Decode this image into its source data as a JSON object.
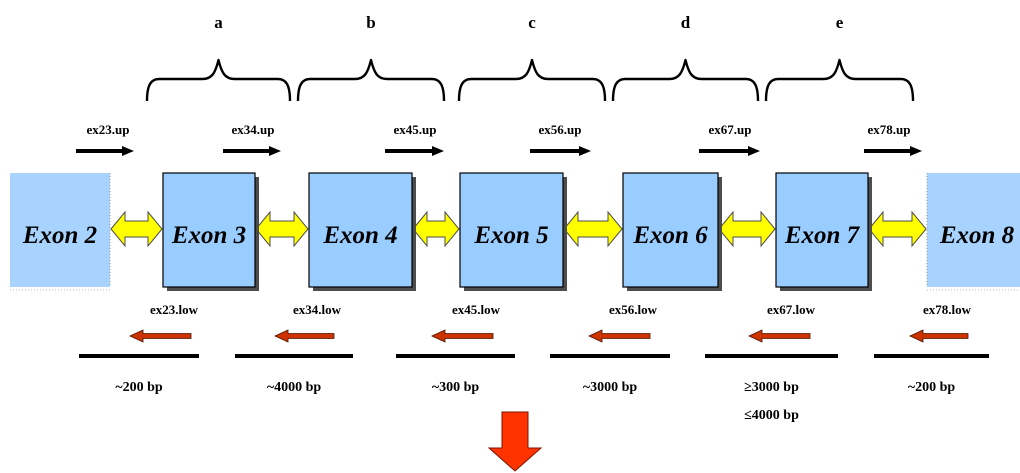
{
  "regions": [
    "a",
    "b",
    "c",
    "d",
    "e"
  ],
  "exons": [
    "Exon 2",
    "Exon 3",
    "Exon 4",
    "Exon 5",
    "Exon 6",
    "Exon 7",
    "Exon 8"
  ],
  "forward_primers": [
    "ex23.up",
    "ex34.up",
    "ex45.up",
    "ex56.up",
    "ex67.up",
    "ex78.up"
  ],
  "reverse_primers": [
    "ex23.low",
    "ex34.low",
    "ex45.low",
    "ex56.low",
    "ex67.low",
    "ex78.low"
  ],
  "intron_sizes": [
    [
      "~200 bp"
    ],
    [
      "~4000 bp"
    ],
    [
      "~300 bp"
    ],
    [
      "~3000 bp"
    ],
    [
      "≥3000 bp",
      "≤4000 bp"
    ],
    [
      "~200 bp"
    ]
  ],
  "colors": {
    "exon_fill": "#99ccff",
    "exon_fill_faded": "#a9d3ff",
    "exon_shadow": "#4d4d4d",
    "intron_connector": "#ffff00",
    "forward_primer": "#000000",
    "reverse_primer": "#cc3300",
    "down_arrow": "#ff3300"
  },
  "icons": {
    "connector": "double-headed-arrow-icon",
    "forward_primer": "right-arrow-icon",
    "reverse_primer": "left-arrow-icon",
    "continuation": "down-arrow-icon"
  }
}
